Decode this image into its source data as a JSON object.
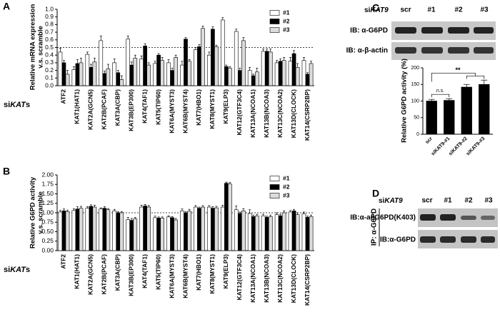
{
  "panels": {
    "a": "A",
    "b": "B",
    "c": "C",
    "d": "D"
  },
  "x_label_parts": [
    "si",
    "KAT",
    "s"
  ],
  "blot_c": {
    "prefix": "si",
    "gene": "KAT9",
    "lanes": [
      "scr",
      "#1",
      "#2",
      "#3"
    ],
    "rows": [
      "IB: α-G6PD",
      "IB: α-β-actin"
    ]
  },
  "blot_d": {
    "prefix": "si",
    "gene": "KAT9",
    "lanes": [
      "scr",
      "#1",
      "#2",
      "#3"
    ],
    "rows": [
      "IB:α-acG6PD(K403)",
      "IB:α-G6PD"
    ],
    "ip": "IP: α-G6PD"
  },
  "chart_data": [
    {
      "type": "bar",
      "y_label": [
        "Relative mRNA expression",
        "v.s. scramble"
      ],
      "categories": [
        "ATF2",
        "KAT1(HAT1)",
        "KAT2A(GCN5)",
        "KAT2B(PCAF)",
        "KAT3A(CBP)",
        "KAT3B(EP300)",
        "KAT4(TAF1)",
        "KAT5(TIP60)",
        "KAT6A(MYST3)",
        "KAT6B(MYST4)",
        "KAT7(HBO1)",
        "KAT8(MYST1)",
        "KAT9(ELP3)",
        "KAT12(GTF3C4)",
        "KAT13A(NCOA1)",
        "KAT13B(NCOA3)",
        "KAT13C(NCOA2)",
        "KAT13D(CLOCK)",
        "KAT14(CSRP2BP)"
      ],
      "series": [
        {
          "name": "#1",
          "color": "#ffffff",
          "values": [
            0.44,
            0.21,
            0.41,
            0.59,
            0.3,
            0.61,
            0.35,
            0.29,
            0.3,
            0.27,
            0.47,
            0.4,
            0.86,
            0.71,
            0.2,
            0.45,
            0.3,
            0.32,
            0.33
          ],
          "errors": [
            0.05,
            0.04,
            0.03,
            0.06,
            0.05,
            0.04,
            0.04,
            0.03,
            0.04,
            0.05,
            0.03,
            0.04,
            0.03,
            0.03,
            0.04,
            0.03,
            0.03,
            0.05,
            0.04
          ]
        },
        {
          "name": "#2",
          "color": "#000000",
          "values": [
            0.3,
            0.29,
            0.24,
            0.16,
            0.17,
            0.27,
            0.52,
            0.4,
            0.2,
            0.61,
            0.51,
            0.74,
            0.25,
            0.2,
            0.13,
            0.45,
            0.32,
            0.42,
            0.15
          ],
          "errors": [
            0.03,
            0.05,
            0.04,
            0.03,
            0.03,
            0.04,
            0.03,
            0.02,
            0.03,
            0.02,
            0.03,
            0.03,
            0.02,
            0.03,
            0.02,
            0.03,
            0.03,
            0.04,
            0.02
          ]
        },
        {
          "name": "#3",
          "color": "#dcdcdc",
          "values": [
            0.15,
            0.3,
            0.31,
            0.22,
            0.08,
            0.36,
            0.27,
            0.33,
            0.37,
            0.32,
            0.75,
            0.51,
            0.23,
            0.59,
            0.18,
            0.44,
            0.33,
            0.24,
            0.29
          ],
          "errors": [
            0.05,
            0.06,
            0.05,
            0.06,
            0.05,
            0.04,
            0.03,
            0.04,
            0.03,
            0.02,
            0.03,
            0.02,
            0.02,
            0.04,
            0.05,
            0.04,
            0.04,
            0.05,
            0.03
          ]
        }
      ],
      "ylim": [
        0,
        1
      ],
      "yticks": [
        {
          "value": 0,
          "label": "0.0"
        },
        0.1,
        0.2,
        0.3,
        0.4,
        0.5,
        0.6,
        0.7,
        0.8,
        0.9,
        {
          "value": 1,
          "label": "1.0"
        }
      ],
      "ref_line": 0.5,
      "legend": "upper right"
    },
    {
      "type": "bar",
      "y_label": [
        "Relative G6PD activity",
        "v.s. scramble"
      ],
      "categories": [
        "ATF2",
        "KAT1(HAT1)",
        "KAT2A(GCN5)",
        "KAT2B(PCAF)",
        "KAT3A(CBP)",
        "KAT3B(EP300)",
        "KAT4(TAF1)",
        "KAT5(TIP60)",
        "KAT6A(MYST3)",
        "KAT6B(MYST4)",
        "KAT7(HBO1)",
        "KAT8(MYST1)",
        "KAT9(ELP3)",
        "KAT12(GTF3C4)",
        "KAT13A(NCOA1)",
        "KAT13B(NCOA3)",
        "KAT13C(NCOA2)",
        "KAT13D(CLOCK)",
        "KAT14(CSRP2BP)"
      ],
      "series": [
        {
          "name": "#1",
          "color": "#ffffff",
          "values": [
            1.02,
            1.06,
            1.12,
            1.1,
            1.05,
            0.82,
            1.15,
            0.87,
            0.89,
            1.05,
            1.15,
            1.15,
            1.15,
            1.08,
            0.98,
            0.92,
            0.95,
            1.02,
            0.97
          ],
          "errors": [
            0.04,
            0.05,
            0.04,
            0.03,
            0.04,
            0.06,
            0.05,
            0.04,
            0.03,
            0.05,
            0.04,
            0.04,
            0.05,
            0.1,
            0.1,
            0.04,
            0.05,
            0.04,
            0.05
          ]
        },
        {
          "name": "#2",
          "color": "#000000",
          "values": [
            1.05,
            1.1,
            1.17,
            1.12,
            1.0,
            0.8,
            1.18,
            0.86,
            0.87,
            1.0,
            1.12,
            1.12,
            1.78,
            0.98,
            0.9,
            0.88,
            0.92,
            1.05,
            0.88
          ],
          "errors": [
            0.05,
            0.06,
            0.04,
            0.04,
            0.03,
            0.05,
            0.04,
            0.03,
            0.03,
            0.03,
            0.03,
            0.04,
            0.03,
            0.04,
            0.04,
            0.03,
            0.04,
            0.04,
            0.03
          ]
        },
        {
          "name": "#3",
          "color": "#dcdcdc",
          "values": [
            1.03,
            1.12,
            1.15,
            1.08,
            1.0,
            0.84,
            1.15,
            0.86,
            0.81,
            1.04,
            1.15,
            1.13,
            1.76,
            1.05,
            0.92,
            0.9,
            1.0,
            0.95,
            0.9
          ],
          "errors": [
            0.04,
            0.05,
            0.05,
            0.03,
            0.03,
            0.04,
            0.04,
            0.03,
            0.04,
            0.05,
            0.04,
            0.04,
            0.04,
            0.06,
            0.04,
            0.04,
            0.05,
            0.05,
            0.04
          ]
        }
      ],
      "ylim": [
        0,
        2
      ],
      "yticks": [
        {
          "value": 0,
          "label": "0.00"
        },
        0.25,
        {
          "value": 0.5,
          "label": "0.50"
        },
        0.75,
        {
          "value": 1,
          "label": "1.00"
        },
        1.25,
        {
          "value": 1.5,
          "label": "1.50"
        },
        1.75,
        {
          "value": 2,
          "label": "2.00"
        }
      ],
      "ref_line": 1,
      "legend": "upper right"
    },
    {
      "type": "bar",
      "y_label": [
        "Relative G6PD activity (%)"
      ],
      "categories": [
        "scr",
        "siKAT9-#1",
        "siKAT9-#2",
        "siKAT9-#3"
      ],
      "values": [
        100,
        102,
        142,
        150
      ],
      "errors": [
        5,
        5,
        8,
        13
      ],
      "color": "#000000",
      "ylim": [
        0,
        200
      ],
      "yticks": [
        0,
        50,
        100,
        150,
        200
      ],
      "annotations": [
        "n.s.",
        "**"
      ]
    }
  ]
}
